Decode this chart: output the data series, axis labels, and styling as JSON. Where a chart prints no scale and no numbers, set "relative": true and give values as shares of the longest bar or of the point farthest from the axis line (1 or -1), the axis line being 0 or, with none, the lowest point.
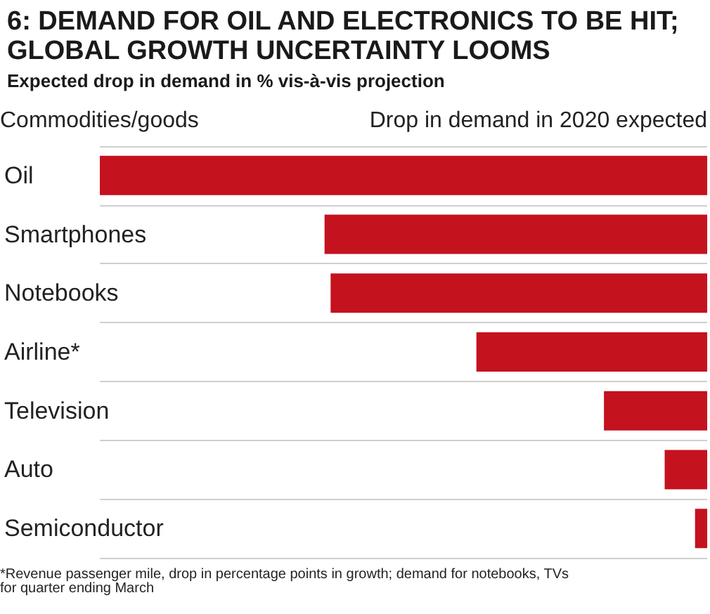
{
  "chart_data": {
    "type": "bar",
    "orientation": "horizontal",
    "relative": true,
    "title": "6: DEMAND FOR OIL AND ELECTRONICS TO BE HIT; GLOBAL GROWTH UNCERTAINTY LOOMS",
    "subtitle": "Expected drop in demand in % vis-à-vis projection",
    "ylabel": "Commodities/goods",
    "xlabel": "Drop in demand in 2020 expected",
    "categories": [
      "Oil",
      "Smartphones",
      "Notebooks",
      "Airline*",
      "Television",
      "Auto",
      "Semiconductor"
    ],
    "values": [
      -1,
      -0.63,
      -0.62,
      -0.38,
      -0.17,
      -0.07,
      -0.02
    ],
    "color": "#c4121e",
    "grid": "y",
    "annotations": [
      "*Revenue passenger mile, drop in percentage points in growth; demand for notebooks, TVs for quarter ending March"
    ]
  }
}
